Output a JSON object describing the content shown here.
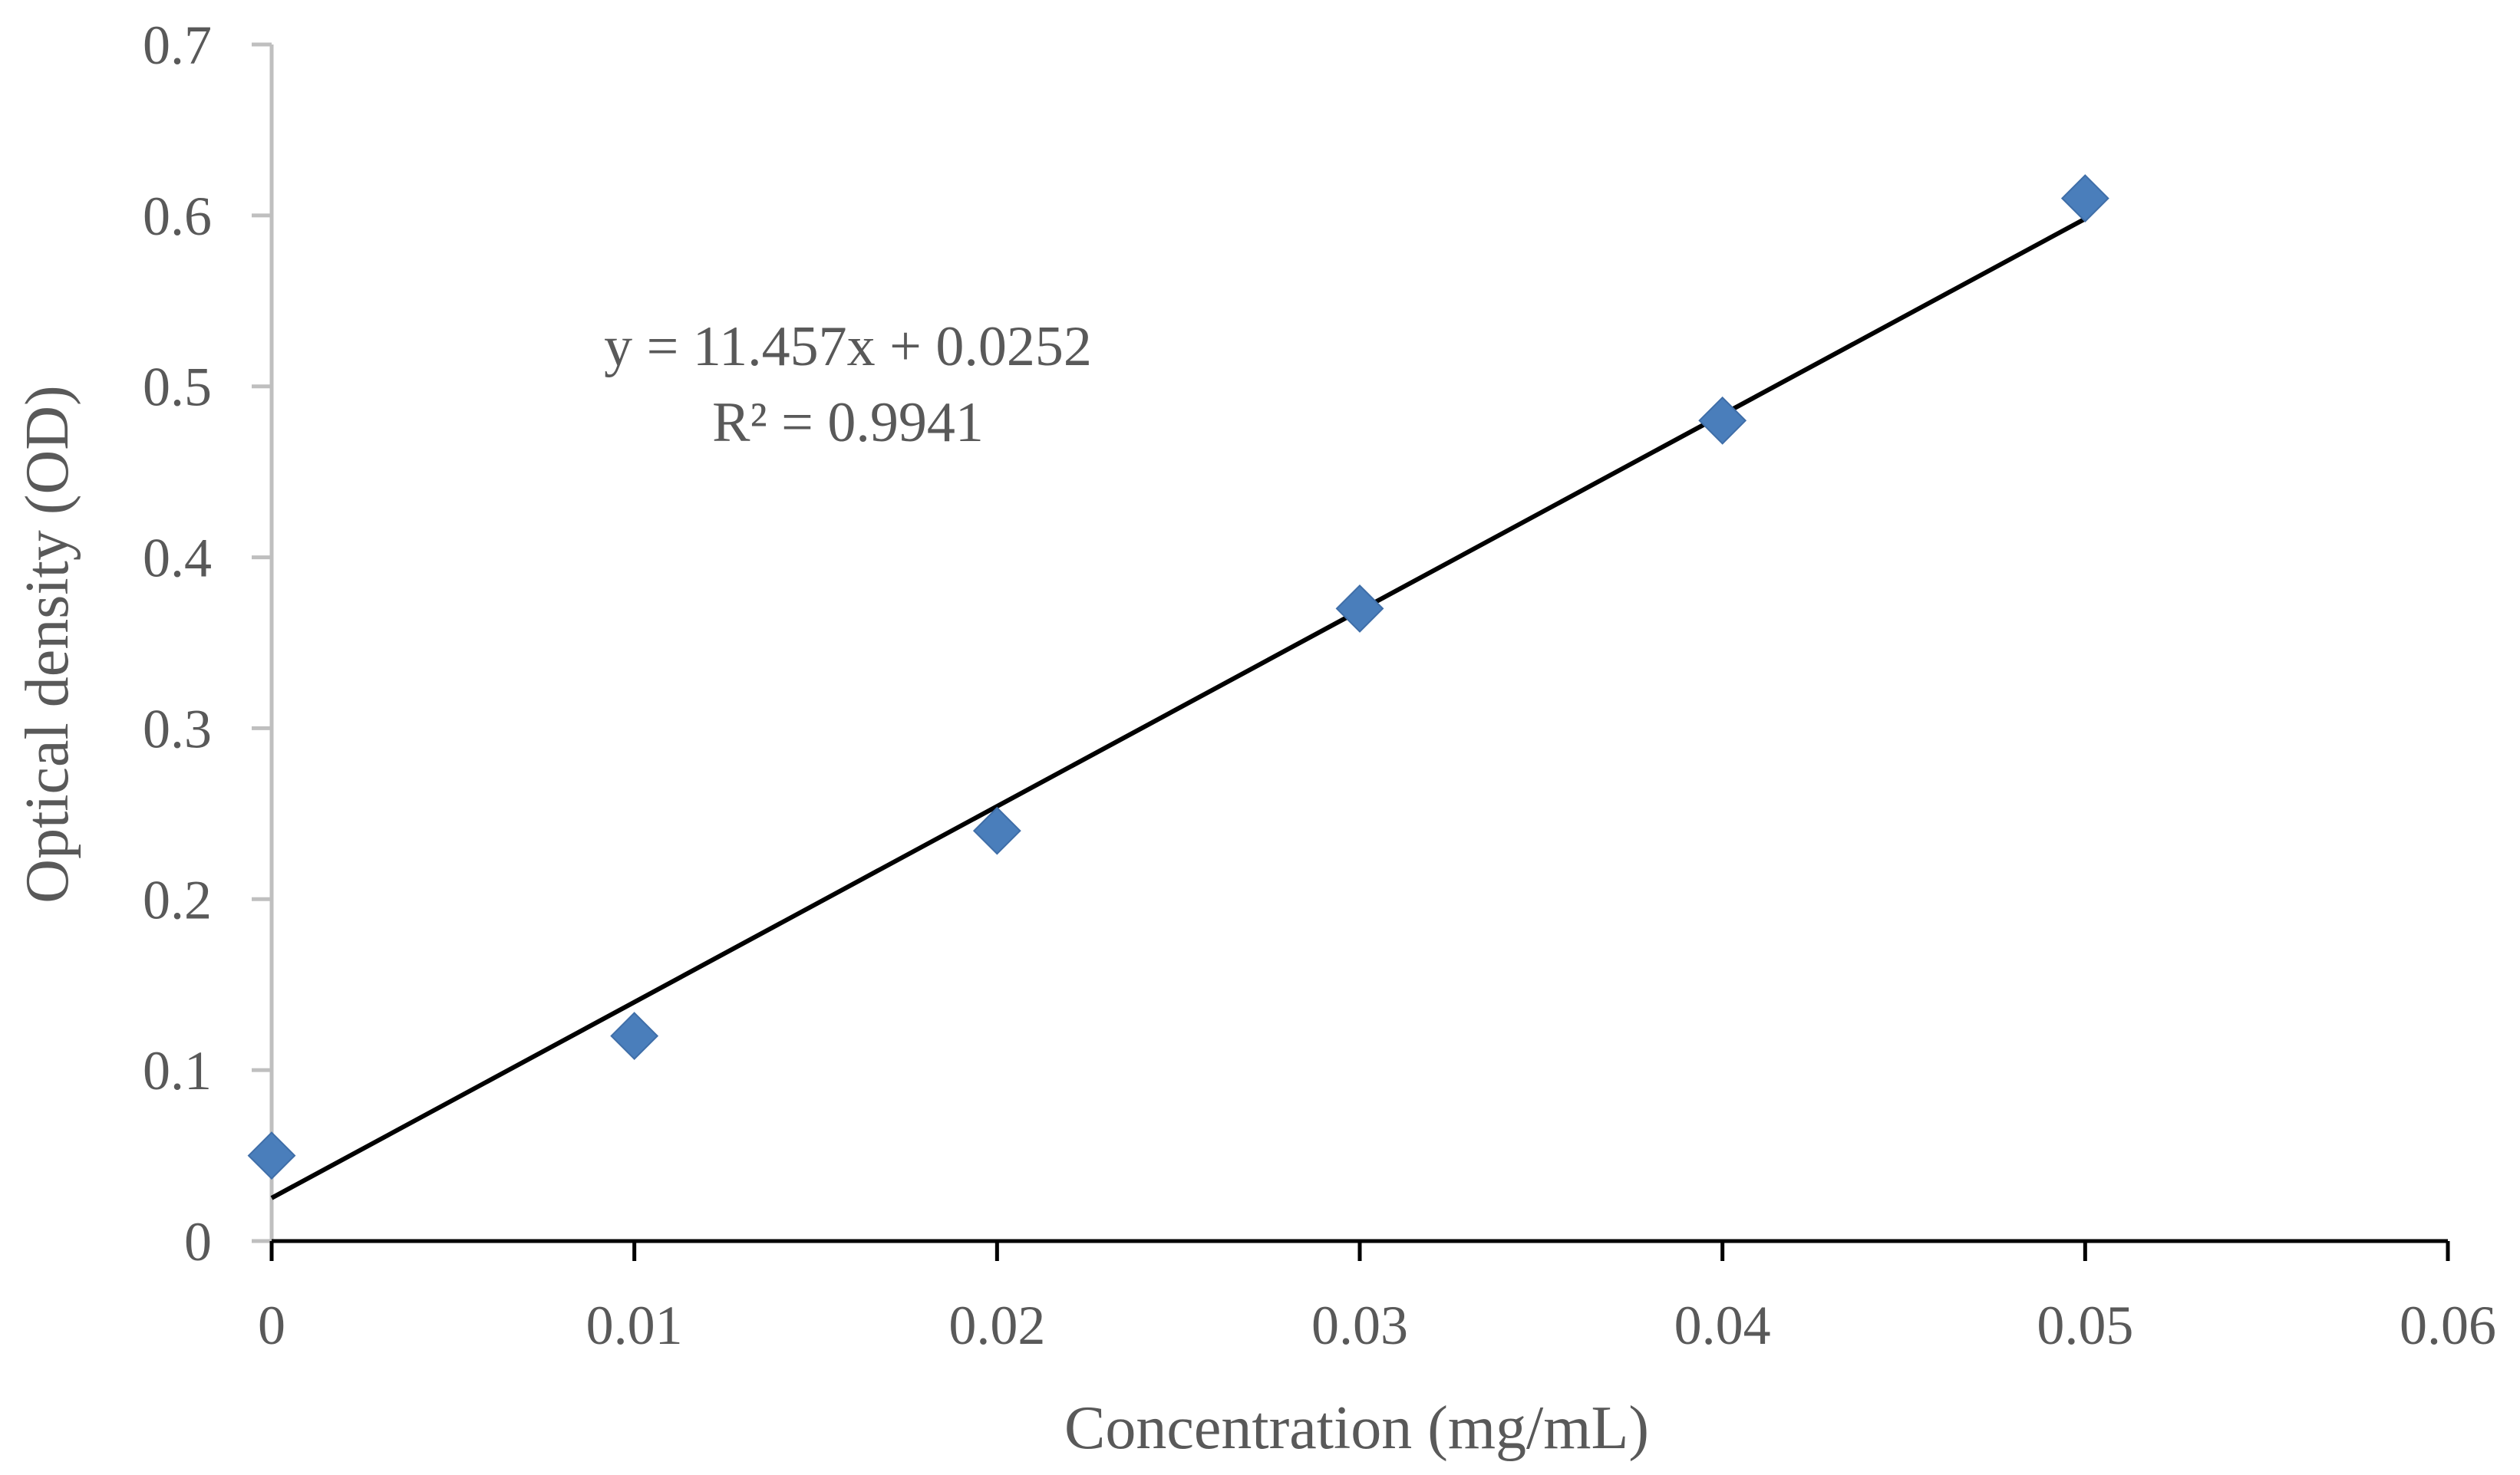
{
  "chart_data": {
    "type": "scatter",
    "title": "",
    "xlabel": "Concentration (mg/mL)",
    "ylabel": "Optical density (OD)",
    "xlim": [
      0,
      0.06
    ],
    "ylim": [
      0,
      0.7
    ],
    "x_ticks": [
      0,
      0.01,
      0.02,
      0.03,
      0.04,
      0.05,
      0.06
    ],
    "x_tick_labels": [
      "0",
      "0.01",
      "0.02",
      "0.03",
      "0.04",
      "0.05",
      "0.06"
    ],
    "y_ticks": [
      0,
      0.1,
      0.2,
      0.3,
      0.4,
      0.5,
      0.6,
      0.7
    ],
    "y_tick_labels": [
      "0",
      "0.1",
      "0.2",
      "0.3",
      "0.4",
      "0.5",
      "0.6",
      "0.7"
    ],
    "grid": false,
    "legend": "none",
    "series": [
      {
        "name": "OD",
        "marker": "diamond",
        "color": "#4a7ebb",
        "x": [
          0,
          0.01,
          0.02,
          0.03,
          0.04,
          0.05
        ],
        "y": [
          0.05,
          0.12,
          0.24,
          0.37,
          0.48,
          0.61
        ]
      }
    ],
    "trendline": {
      "type": "linear",
      "slope": 11.457,
      "intercept": 0.0252,
      "x_range": [
        0,
        0.05
      ],
      "color": "#000000",
      "equation_label": "y = 11.457x + 0.0252",
      "r2_label": "R² = 0.9941"
    },
    "axis_color": "#000000",
    "y_axis_color": "#bfbfbf"
  }
}
